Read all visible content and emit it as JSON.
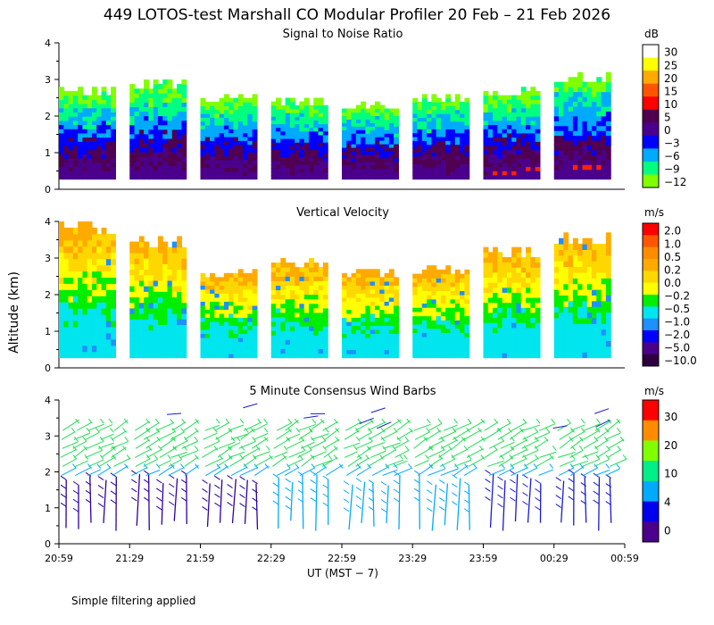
{
  "title": "449 LOTOS-test Marshall CO Modular Profiler 20 Feb – 21 Feb 2026",
  "footnote": "Simple filtering applied",
  "chart_data": [
    {
      "type": "heatmap",
      "title": "Signal to Noise Ratio",
      "ylabel": "Altitude (km)",
      "ylim": [
        0,
        4
      ],
      "y_ticks": [
        "0",
        "1",
        "2",
        "3",
        "4"
      ],
      "colorbar_unit": "dB",
      "colorbar_levels": [
        "30",
        "25",
        "20",
        "15",
        "10",
        "5",
        "0",
        "−3",
        "−6",
        "−9",
        "−12"
      ],
      "colorbar_colors": [
        "#ffffff",
        "#ffff00",
        "#ffaa00",
        "#ff5500",
        "#ff0000",
        "#500050",
        "#4b008c",
        "#0000ff",
        "#00aaff",
        "#00ff80",
        "#80ff00"
      ],
      "segments": [
        {
          "start": "20:59",
          "end": "21:23",
          "top_km": 2.8
        },
        {
          "start": "21:29",
          "end": "21:53",
          "top_km": 3.0
        },
        {
          "start": "21:59",
          "end": "22:23",
          "top_km": 2.6
        },
        {
          "start": "22:29",
          "end": "22:53",
          "top_km": 2.5
        },
        {
          "start": "22:59",
          "end": "23:23",
          "top_km": 2.4
        },
        {
          "start": "23:29",
          "end": "23:53",
          "top_km": 2.6
        },
        {
          "start": "23:59",
          "end": "00:23",
          "top_km": 2.8
        },
        {
          "start": "00:29",
          "end": "00:53",
          "top_km": 3.2
        }
      ]
    },
    {
      "type": "heatmap",
      "title": "Vertical Velocity",
      "ylabel": "Altitude (km)",
      "ylim": [
        0,
        4
      ],
      "y_ticks": [
        "0",
        "1",
        "2",
        "3",
        "4"
      ],
      "colorbar_unit": "m/s",
      "colorbar_levels": [
        "2.0",
        "1.0",
        "0.5",
        "0.2",
        "0.0",
        "−0.2",
        "−0.5",
        "−1.0",
        "−2.0",
        "−5.0",
        "−10.0"
      ],
      "colorbar_colors": [
        "#ff0000",
        "#ff5500",
        "#ff8c00",
        "#ffaa00",
        "#ffd700",
        "#ffff00",
        "#00ee00",
        "#00e5ee",
        "#1e90ff",
        "#0000ff",
        "#4b008c",
        "#2d0040"
      ],
      "segments": [
        {
          "start": "20:59",
          "end": "21:23",
          "top_km": 4.0
        },
        {
          "start": "21:29",
          "end": "21:53",
          "top_km": 3.6
        },
        {
          "start": "21:59",
          "end": "22:23",
          "top_km": 2.7
        },
        {
          "start": "22:29",
          "end": "22:53",
          "top_km": 3.0
        },
        {
          "start": "22:59",
          "end": "23:23",
          "top_km": 2.7
        },
        {
          "start": "23:29",
          "end": "23:53",
          "top_km": 2.8
        },
        {
          "start": "23:59",
          "end": "00:23",
          "top_km": 3.3
        },
        {
          "start": "00:29",
          "end": "00:53",
          "top_km": 3.7
        }
      ]
    },
    {
      "type": "wind_barbs",
      "title": "5 Minute Consensus Wind Barbs",
      "ylabel": "Altitude (km)",
      "ylim": [
        0,
        4
      ],
      "y_ticks": [
        "0",
        "1",
        "2",
        "3",
        "4"
      ],
      "colorbar_unit": "m/s",
      "colorbar_levels": [
        "30",
        "20",
        "10",
        "4",
        "0"
      ],
      "colorbar_colors": [
        "#ff0000",
        "#ff8c00",
        "#80ff00",
        "#00ee88",
        "#00aaff",
        "#0000ee",
        "#4b008c"
      ],
      "x_ticks": [
        "20:59",
        "21:29",
        "21:59",
        "22:29",
        "22:59",
        "23:29",
        "23:59",
        "00:29",
        "00:59"
      ],
      "xlabel": "UT  (MST − 7)"
    }
  ]
}
